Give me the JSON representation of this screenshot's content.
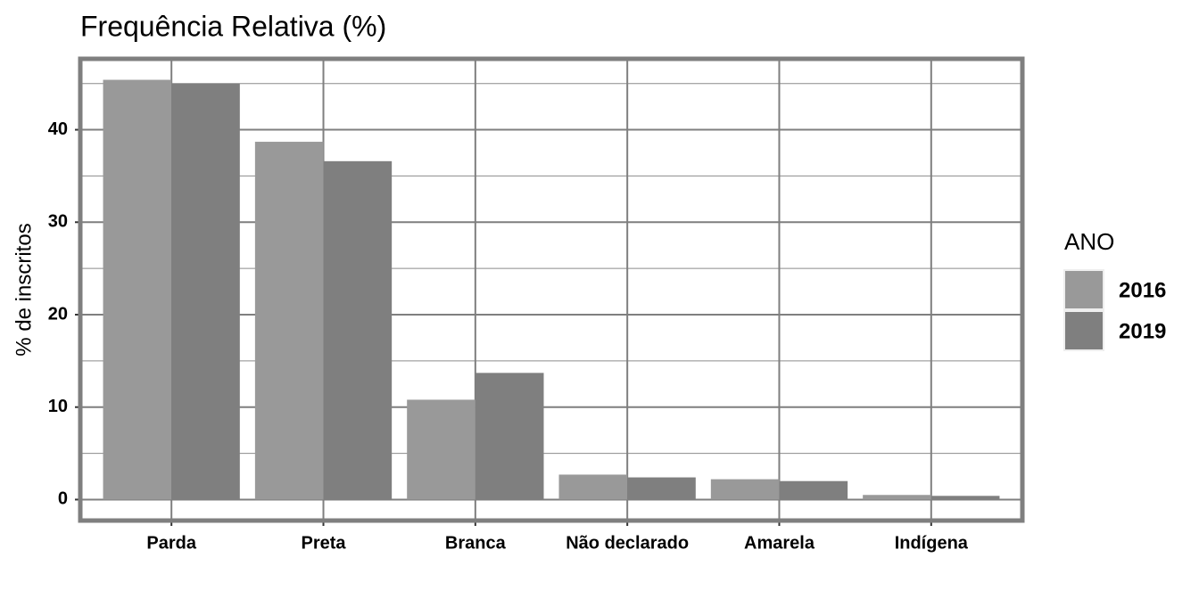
{
  "chart_data": {
    "type": "bar",
    "title": "Frequência Relativa (%)",
    "y_label": "% de inscritos",
    "legend_title": "ANO",
    "categories": [
      "Parda",
      "Preta",
      "Branca",
      "Não declarado",
      "Amarela",
      "Indígena"
    ],
    "series": [
      {
        "name": "2016",
        "color": "#999999",
        "values": [
          45.4,
          38.7,
          10.8,
          2.7,
          2.2,
          0.5
        ]
      },
      {
        "name": "2019",
        "color": "#7f7f7f",
        "values": [
          45.0,
          36.6,
          13.7,
          2.4,
          2.0,
          0.4
        ]
      }
    ],
    "ylim": [
      -2.27,
      47.67
    ],
    "yticks": [
      0,
      10,
      20,
      30,
      40
    ],
    "minor_yticks": [
      5,
      15,
      25,
      35,
      45
    ],
    "grid": true,
    "legend_position": "right"
  }
}
